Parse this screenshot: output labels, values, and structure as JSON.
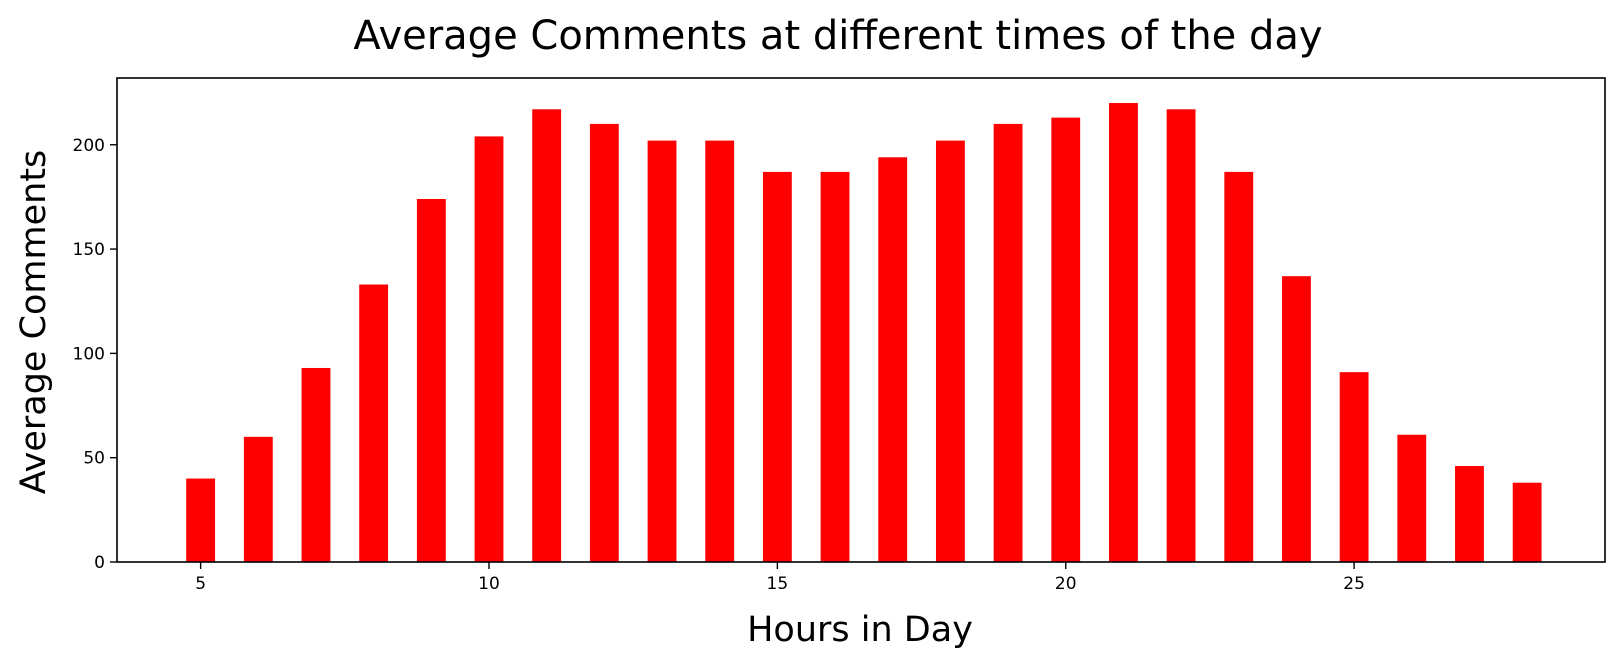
{
  "chart_data": {
    "type": "bar",
    "title": "Average Comments at different times of the day",
    "xlabel": "Hours in Day",
    "ylabel": "Average Comments",
    "x": [
      5,
      6,
      7,
      8,
      9,
      10,
      11,
      12,
      13,
      14,
      15,
      16,
      17,
      18,
      19,
      20,
      21,
      22,
      23,
      24,
      25,
      26,
      27,
      28
    ],
    "values": [
      40,
      60,
      93,
      133,
      174,
      204,
      217,
      210,
      202,
      202,
      187,
      187,
      194,
      202,
      210,
      213,
      220,
      217,
      187,
      137,
      91,
      61,
      46,
      38
    ],
    "xlim": [
      3.55,
      29.35
    ],
    "ylim": [
      0,
      232
    ],
    "xticks": [
      5,
      10,
      15,
      20,
      25
    ],
    "yticks": [
      0,
      50,
      100,
      150,
      200
    ],
    "bar_color": "#ff0000",
    "grid": false,
    "legend": false
  }
}
